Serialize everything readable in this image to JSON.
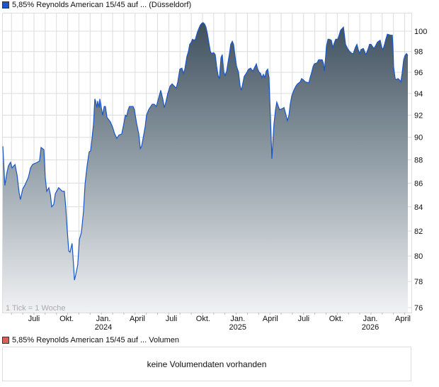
{
  "chart_data": {
    "type": "area",
    "title": "5,85% Reynolds American 15/45 auf ... (Düsseldorf)",
    "xlabel": "",
    "ylabel": "",
    "y_scale": "log",
    "ylim": [
      75.5,
      102
    ],
    "y_ticks": [
      100,
      98,
      96,
      94,
      92,
      90,
      88,
      86,
      84,
      82,
      80,
      78,
      76
    ],
    "x_unit": "weeks since start (mid-April 2023)",
    "x_ticks": [
      {
        "week": 12.05,
        "label": "Juli",
        "year": ""
      },
      {
        "week": 24.7,
        "label": "Okt.",
        "year": ""
      },
      {
        "week": 38.9,
        "label": "Jan.",
        "year": "2024"
      },
      {
        "week": 52.05,
        "label": "April",
        "year": ""
      },
      {
        "week": 65.2,
        "label": "Juli",
        "year": ""
      },
      {
        "week": 77.5,
        "label": "Okt.",
        "year": ""
      },
      {
        "week": 90.9,
        "label": "Jan.",
        "year": "2025"
      },
      {
        "week": 103.5,
        "label": "April",
        "year": ""
      },
      {
        "week": 116.4,
        "label": "Juli",
        "year": ""
      },
      {
        "week": 129.0,
        "label": "Okt.",
        "year": ""
      },
      {
        "week": 142.2,
        "label": "Jan.",
        "year": "2026"
      },
      {
        "week": 154.8,
        "label": "April",
        "year": ""
      }
    ],
    "grid": true,
    "annotation": "1 Tick = 1 Woche",
    "series": [
      {
        "name": "5,85% Reynolds American 15/45 auf ... (Düsseldorf)",
        "color": "#1a56c8",
        "points": [
          [
            0,
            89.2
          ],
          [
            0.8,
            85.8
          ],
          [
            1.6,
            86.9
          ],
          [
            2.2,
            87.5
          ],
          [
            3.0,
            87.8
          ],
          [
            3.6,
            87.3
          ],
          [
            4.7,
            87.6
          ],
          [
            5.5,
            86.7
          ],
          [
            6.3,
            85.2
          ],
          [
            6.8,
            84.6
          ],
          [
            7.7,
            85.5
          ],
          [
            8.5,
            85.8
          ],
          [
            9.9,
            86.5
          ],
          [
            10.7,
            87.3
          ],
          [
            11.5,
            87.6
          ],
          [
            13.4,
            87.8
          ],
          [
            14.2,
            87.9
          ],
          [
            14.8,
            89.1
          ],
          [
            15.9,
            88.9
          ],
          [
            16.4,
            86.5
          ],
          [
            17.0,
            85.3
          ],
          [
            17.8,
            85.6
          ],
          [
            18.4,
            85.0
          ],
          [
            18.9,
            84.0
          ],
          [
            19.7,
            84.2
          ],
          [
            20.3,
            85.1
          ],
          [
            21.6,
            85.6
          ],
          [
            23.0,
            85.3
          ],
          [
            23.8,
            85.3
          ],
          [
            24.4,
            83.8
          ],
          [
            24.9,
            82.1
          ],
          [
            25.5,
            80.4
          ],
          [
            26.0,
            80.3
          ],
          [
            26.8,
            81.0
          ],
          [
            27.4,
            79.2
          ],
          [
            27.7,
            78.1
          ],
          [
            28.2,
            78.5
          ],
          [
            29.0,
            79.3
          ],
          [
            29.6,
            81.3
          ],
          [
            30.4,
            81.9
          ],
          [
            31.2,
            83.6
          ],
          [
            31.8,
            85.9
          ],
          [
            32.6,
            87.5
          ],
          [
            33.4,
            88.7
          ],
          [
            34.0,
            88.8
          ],
          [
            35.1,
            91.2
          ],
          [
            35.6,
            93.5
          ],
          [
            35.9,
            93.3
          ],
          [
            36.4,
            92.7
          ],
          [
            36.7,
            93.3
          ],
          [
            37.3,
            92.7
          ],
          [
            37.5,
            93.5
          ],
          [
            38.1,
            92.7
          ],
          [
            38.6,
            92.0
          ],
          [
            39.2,
            92.8
          ],
          [
            39.7,
            92.8
          ],
          [
            40.3,
            91.8
          ],
          [
            41.6,
            91.4
          ],
          [
            42.5,
            90.9
          ],
          [
            43.3,
            90.3
          ],
          [
            44.1,
            89.9
          ],
          [
            44.9,
            90.2
          ],
          [
            46.0,
            90.3
          ],
          [
            46.8,
            91.2
          ],
          [
            47.4,
            92.0
          ],
          [
            47.9,
            91.9
          ],
          [
            48.5,
            92.5
          ],
          [
            49.0,
            92.8
          ],
          [
            50.4,
            92.8
          ],
          [
            50.9,
            92.5
          ],
          [
            51.8,
            91.2
          ],
          [
            52.6,
            90.3
          ],
          [
            53.2,
            89.0
          ],
          [
            53.7,
            89.2
          ],
          [
            54.2,
            89.8
          ],
          [
            55.1,
            91.0
          ],
          [
            55.6,
            92.0
          ],
          [
            56.4,
            92.5
          ],
          [
            57.8,
            93.0
          ],
          [
            58.6,
            93.0
          ],
          [
            59.4,
            92.8
          ],
          [
            60.3,
            93.6
          ],
          [
            61.1,
            94.3
          ],
          [
            61.9,
            93.5
          ],
          [
            62.5,
            92.7
          ],
          [
            63.0,
            93.1
          ],
          [
            63.8,
            94.0
          ],
          [
            64.7,
            94.7
          ],
          [
            65.5,
            94.9
          ],
          [
            66.3,
            94.7
          ],
          [
            67.1,
            94.5
          ],
          [
            67.7,
            95.1
          ],
          [
            68.5,
            96.3
          ],
          [
            69.3,
            96.4
          ],
          [
            69.9,
            95.9
          ],
          [
            70.4,
            96.3
          ],
          [
            71.2,
            97.5
          ],
          [
            71.8,
            98.0
          ],
          [
            72.3,
            98.7
          ],
          [
            72.9,
            98.9
          ],
          [
            73.4,
            99.2
          ],
          [
            74.0,
            99.1
          ],
          [
            74.5,
            99.2
          ],
          [
            75.3,
            99.9
          ],
          [
            75.9,
            100.3
          ],
          [
            76.4,
            100.6
          ],
          [
            77.0,
            100.8
          ],
          [
            77.5,
            100.85
          ],
          [
            78.1,
            100.7
          ],
          [
            78.6,
            100.4
          ],
          [
            79.2,
            99.7
          ],
          [
            79.7,
            98.9
          ],
          [
            80.3,
            98.0
          ],
          [
            80.8,
            97.8
          ],
          [
            81.6,
            97.9
          ],
          [
            82.2,
            97.7
          ],
          [
            82.7,
            96.6
          ],
          [
            83.3,
            95.7
          ],
          [
            83.8,
            95.4
          ],
          [
            84.4,
            97.4
          ],
          [
            84.9,
            97.7
          ],
          [
            85.5,
            96.0
          ],
          [
            86.0,
            95.7
          ],
          [
            86.6,
            96.1
          ],
          [
            87.1,
            96.9
          ],
          [
            87.7,
            97.8
          ],
          [
            88.2,
            98.7
          ],
          [
            88.8,
            99.0
          ],
          [
            89.3,
            98.7
          ],
          [
            89.9,
            97.5
          ],
          [
            90.4,
            96.6
          ],
          [
            91.2,
            96.0
          ],
          [
            91.8,
            94.7
          ],
          [
            92.3,
            94.3
          ],
          [
            92.9,
            95.0
          ],
          [
            93.4,
            95.6
          ],
          [
            94.2,
            95.9
          ],
          [
            95.1,
            96.3
          ],
          [
            95.9,
            96.4
          ],
          [
            96.7,
            96.1
          ],
          [
            97.3,
            96.4
          ],
          [
            98.1,
            96.8
          ],
          [
            98.6,
            96.3
          ],
          [
            99.2,
            96.0
          ],
          [
            99.7,
            95.9
          ],
          [
            100.3,
            95.5
          ],
          [
            100.8,
            95.8
          ],
          [
            101.4,
            95.5
          ],
          [
            101.9,
            96.1
          ],
          [
            102.5,
            96.3
          ],
          [
            103.0,
            95.5
          ],
          [
            103.6,
            91.6
          ],
          [
            104.1,
            88.1
          ],
          [
            104.4,
            89.3
          ],
          [
            104.9,
            91.2
          ],
          [
            105.5,
            92.5
          ],
          [
            106.0,
            93.2
          ],
          [
            106.6,
            92.8
          ],
          [
            107.1,
            92.5
          ],
          [
            108.2,
            92.6
          ],
          [
            108.8,
            92.7
          ],
          [
            109.6,
            92.0
          ],
          [
            110.1,
            91.5
          ],
          [
            110.7,
            92.0
          ],
          [
            111.2,
            93.0
          ],
          [
            111.8,
            93.8
          ],
          [
            112.6,
            94.3
          ],
          [
            113.4,
            94.7
          ],
          [
            114.0,
            94.9
          ],
          [
            115.1,
            95.1
          ],
          [
            115.6,
            95.4
          ],
          [
            116.2,
            95.3
          ],
          [
            117.0,
            95.1
          ],
          [
            118.4,
            95.0
          ],
          [
            118.9,
            95.5
          ],
          [
            119.5,
            96.0
          ],
          [
            120.0,
            96.5
          ],
          [
            120.5,
            96.8
          ],
          [
            121.6,
            96.9
          ],
          [
            122.2,
            97.2
          ],
          [
            123.6,
            97.2
          ],
          [
            124.1,
            96.8
          ],
          [
            124.4,
            96.1
          ],
          [
            124.9,
            97.5
          ],
          [
            125.2,
            98.5
          ],
          [
            125.8,
            99.2
          ],
          [
            126.3,
            99.2
          ],
          [
            127.1,
            99.1
          ],
          [
            127.7,
            98.4
          ],
          [
            128.2,
            98.8
          ],
          [
            128.8,
            99.2
          ],
          [
            129.6,
            99.2
          ],
          [
            130.1,
            99.6
          ],
          [
            130.7,
            100.1
          ],
          [
            131.8,
            100.4
          ],
          [
            132.6,
            98.7
          ],
          [
            133.4,
            98.3
          ],
          [
            134.2,
            98.0
          ],
          [
            135.1,
            97.8
          ],
          [
            135.6,
            97.8
          ],
          [
            136.4,
            98.4
          ],
          [
            137.0,
            98.7
          ],
          [
            137.5,
            98.2
          ],
          [
            138.1,
            97.8
          ],
          [
            138.6,
            98.2
          ],
          [
            139.5,
            98.3
          ],
          [
            140.0,
            98.0
          ],
          [
            140.5,
            97.7
          ],
          [
            141.4,
            98.3
          ],
          [
            141.9,
            98.7
          ],
          [
            142.5,
            98.7
          ],
          [
            143.0,
            98.5
          ],
          [
            143.6,
            98.3
          ],
          [
            144.1,
            98.5
          ],
          [
            144.9,
            98.9
          ],
          [
            146.0,
            99.1
          ],
          [
            146.6,
            98.4
          ],
          [
            147.1,
            98.2
          ],
          [
            147.7,
            98.7
          ],
          [
            148.2,
            99.2
          ],
          [
            148.8,
            99.7
          ],
          [
            150.1,
            99.6
          ],
          [
            150.7,
            99.6
          ],
          [
            151.0,
            98.2
          ],
          [
            151.2,
            96.5
          ],
          [
            151.8,
            95.4
          ],
          [
            152.3,
            95.3
          ],
          [
            152.9,
            95.4
          ],
          [
            153.4,
            95.3
          ],
          [
            154.0,
            95.1
          ],
          [
            154.5,
            95.9
          ],
          [
            155.1,
            97.2
          ],
          [
            155.6,
            97.6
          ],
          [
            156.2,
            97.8
          ],
          [
            156.7,
            97.6
          ]
        ]
      }
    ],
    "legend": {
      "placement": "top-left",
      "swatch_color": "#1a56c8"
    }
  },
  "volume": {
    "legend": "5,85% Reynolds American 15/45 auf ... Volumen",
    "swatch_color": "#d9605a",
    "message": "keine Volumendaten vorhanden"
  }
}
